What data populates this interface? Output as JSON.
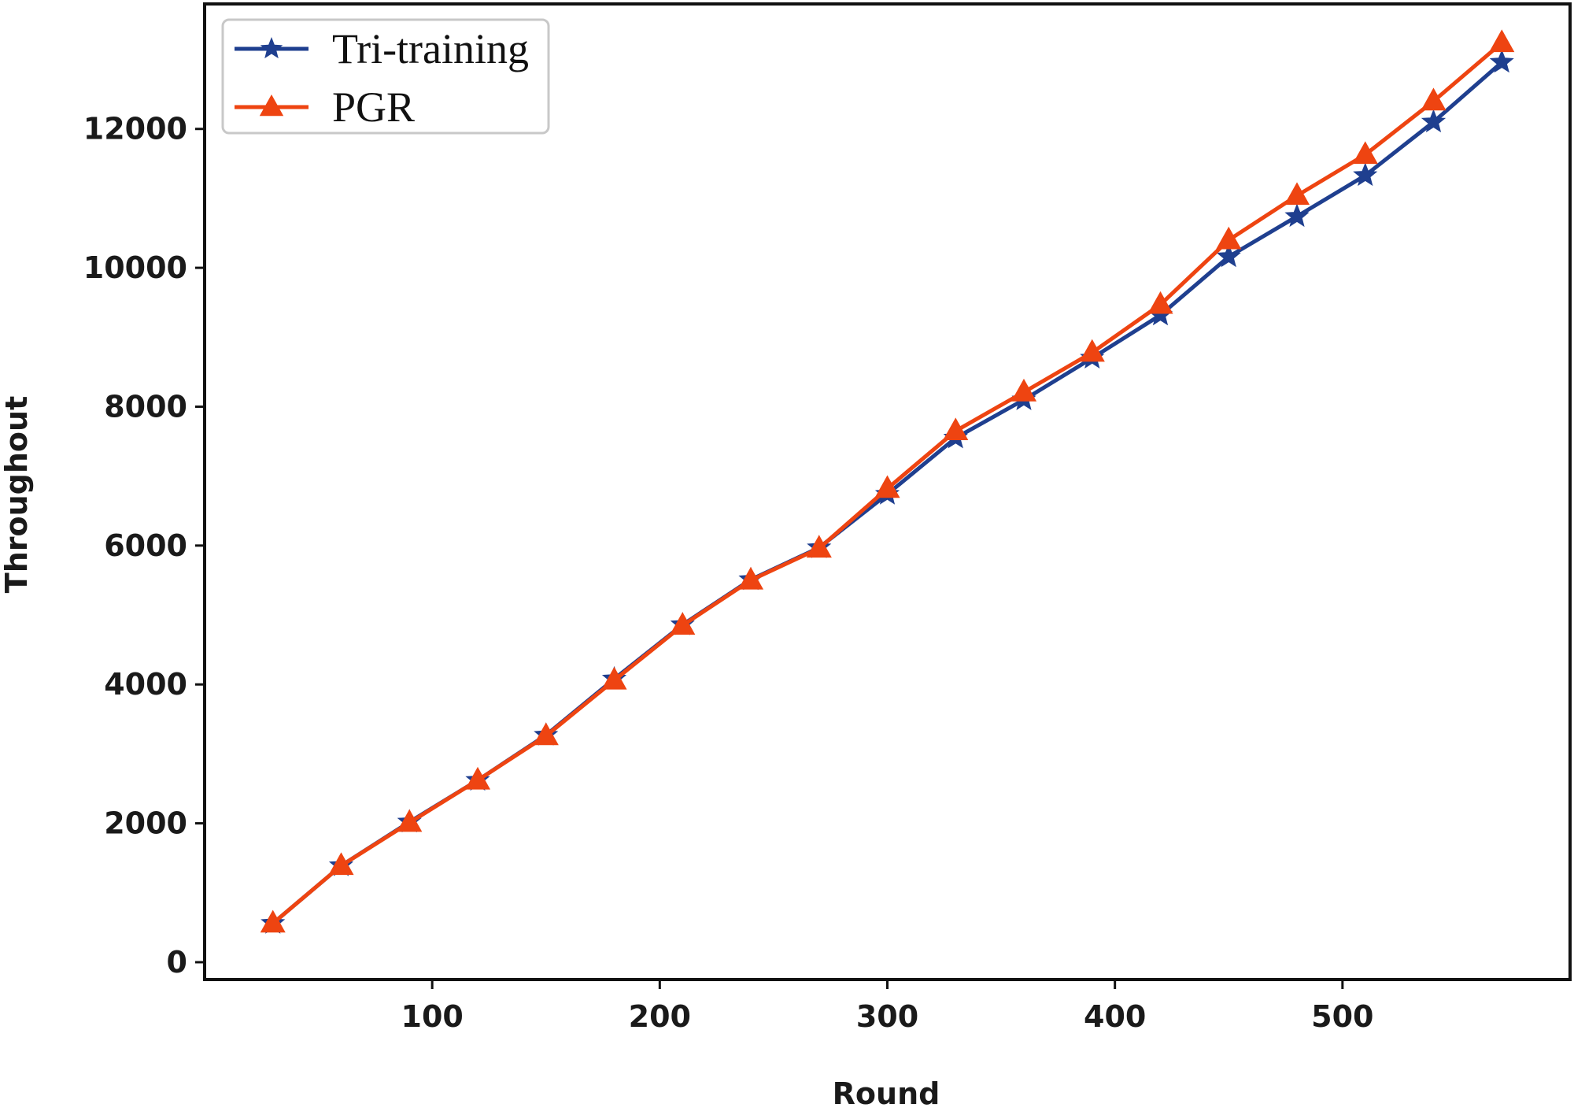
{
  "chart_data": {
    "type": "line",
    "title": "",
    "xlabel": "Round",
    "ylabel": "Throughout",
    "xlim": [
      0,
      600
    ],
    "ylim": [
      -250,
      13800
    ],
    "xticks": [
      100,
      200,
      300,
      400,
      500
    ],
    "yticks": [
      0,
      2000,
      4000,
      6000,
      8000,
      10000,
      12000
    ],
    "grid": false,
    "legend_position": "top-left",
    "x": [
      30,
      60,
      90,
      120,
      150,
      180,
      210,
      240,
      270,
      300,
      330,
      360,
      390,
      420,
      450,
      480,
      510,
      540,
      570
    ],
    "series": [
      {
        "name": "Tri-training",
        "color": "#1f3f8f",
        "marker": "star",
        "values": [
          560,
          1390,
          2020,
          2620,
          3270,
          4080,
          4860,
          5510,
          5970,
          6740,
          7550,
          8100,
          8700,
          9320,
          10160,
          10740,
          11330,
          12100,
          12960
        ]
      },
      {
        "name": "PGR",
        "color": "#ee4411",
        "marker": "triangle",
        "values": [
          560,
          1390,
          2010,
          2620,
          3260,
          4060,
          4850,
          5500,
          5960,
          6820,
          7650,
          8210,
          8780,
          9470,
          10400,
          11040,
          11630,
          12400,
          13240
        ]
      }
    ]
  }
}
